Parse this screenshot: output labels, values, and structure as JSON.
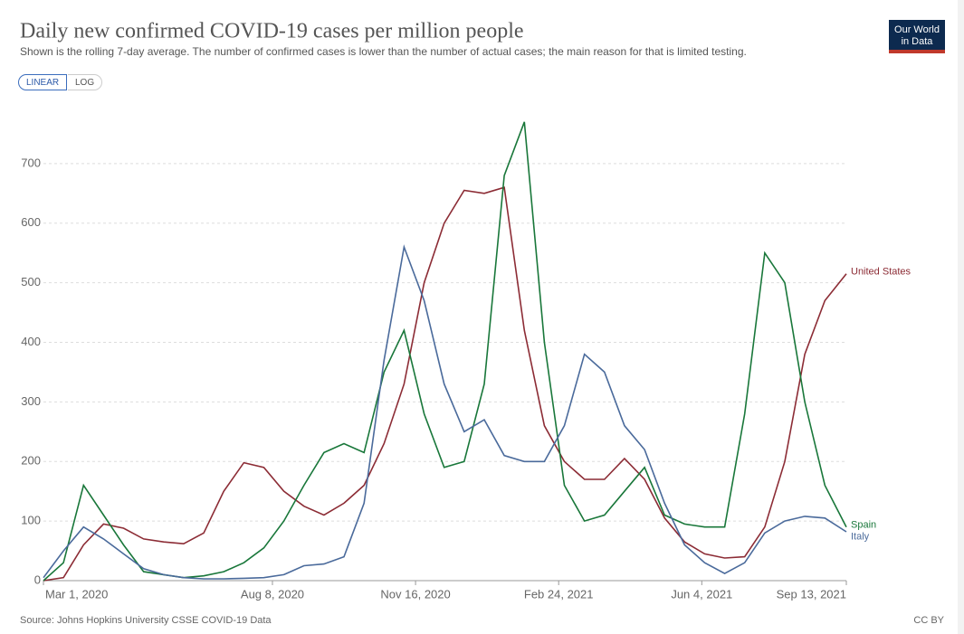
{
  "chart_data": {
    "type": "line",
    "title": "Daily new confirmed COVID-19 cases per million people",
    "subtitle": "Shown is the rolling 7-day average. The number of confirmed cases is lower than the number of actual cases; the main reason for that is limited testing.",
    "source": "Source: Johns Hopkins University CSSE COVID-19 Data",
    "x": [
      "2020-03-01",
      "2020-03-15",
      "2020-03-29",
      "2020-04-12",
      "2020-04-26",
      "2020-05-10",
      "2020-05-24",
      "2020-06-07",
      "2020-06-21",
      "2020-07-05",
      "2020-07-19",
      "2020-08-02",
      "2020-08-16",
      "2020-08-30",
      "2020-09-13",
      "2020-09-27",
      "2020-10-11",
      "2020-10-25",
      "2020-11-08",
      "2020-11-22",
      "2020-12-06",
      "2020-12-20",
      "2021-01-03",
      "2021-01-17",
      "2021-01-31",
      "2021-02-14",
      "2021-02-28",
      "2021-03-14",
      "2021-03-28",
      "2021-04-11",
      "2021-04-25",
      "2021-05-09",
      "2021-05-23",
      "2021-06-06",
      "2021-06-20",
      "2021-07-04",
      "2021-07-18",
      "2021-08-01",
      "2021-08-15",
      "2021-08-29",
      "2021-09-13"
    ],
    "series": [
      {
        "name": "United States",
        "color": "#8c2c35",
        "values": [
          0,
          5,
          60,
          95,
          88,
          70,
          65,
          62,
          80,
          150,
          198,
          190,
          150,
          125,
          110,
          130,
          160,
          230,
          330,
          500,
          600,
          655,
          650,
          660,
          420,
          260,
          200,
          170,
          170,
          205,
          170,
          105,
          65,
          45,
          38,
          40,
          90,
          200,
          380,
          470,
          515
        ]
      },
      {
        "name": "Spain",
        "color": "#19773a",
        "values": [
          0,
          30,
          160,
          110,
          60,
          15,
          10,
          5,
          8,
          15,
          30,
          55,
          100,
          160,
          215,
          230,
          215,
          350,
          420,
          280,
          190,
          200,
          330,
          680,
          770,
          400,
          160,
          100,
          110,
          150,
          190,
          110,
          95,
          90,
          90,
          280,
          550,
          500,
          300,
          160,
          90
        ]
      },
      {
        "name": "Italy",
        "color": "#4a6a9b",
        "values": [
          5,
          50,
          90,
          70,
          45,
          20,
          10,
          5,
          3,
          3,
          4,
          5,
          10,
          25,
          28,
          40,
          130,
          370,
          560,
          470,
          330,
          250,
          270,
          210,
          200,
          200,
          260,
          380,
          350,
          260,
          220,
          130,
          60,
          30,
          12,
          30,
          80,
          100,
          108,
          105,
          82
        ]
      }
    ],
    "xlim": [
      "2020-03-01",
      "2021-09-13"
    ],
    "xticks": [
      {
        "value": "2020-03-01",
        "label": "Mar 1, 2020"
      },
      {
        "value": "2020-08-08",
        "label": "Aug 8, 2020"
      },
      {
        "value": "2020-11-16",
        "label": "Nov 16, 2020"
      },
      {
        "value": "2021-02-24",
        "label": "Feb 24, 2021"
      },
      {
        "value": "2021-06-04",
        "label": "Jun 4, 2021"
      },
      {
        "value": "2021-09-13",
        "label": "Sep 13, 2021"
      }
    ],
    "ylim": [
      0,
      800
    ],
    "yticks": [
      0,
      100,
      200,
      300,
      400,
      500,
      600,
      700
    ],
    "grid": true,
    "log_scale": false
  },
  "controls": [
    "LINEAR",
    "LOG"
  ],
  "logo": [
    "Our World",
    "in Data"
  ],
  "license": "CC BY"
}
